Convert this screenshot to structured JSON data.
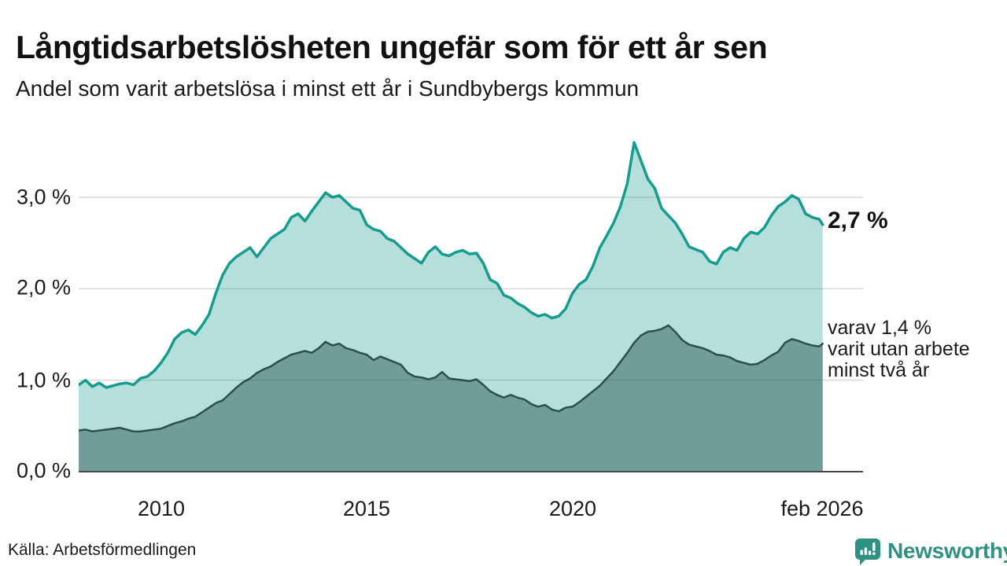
{
  "header": {
    "title": "Långtidsarbetslösheten ungefär som för ett år sen",
    "subtitle": "Andel som varit arbetslösa i minst ett år i Sundbybergs kommun"
  },
  "chart_data": {
    "type": "area",
    "title": "Långtidsarbetslösheten ungefär som för ett år sen",
    "subtitle": "Andel som varit arbetslösa i minst ett år i Sundbybergs kommun",
    "xlabel": "",
    "ylabel": "",
    "ylim": [
      0,
      3.75
    ],
    "xlim": [
      2008,
      2026.083
    ],
    "grid": true,
    "y_ticks": [
      "0,0 %",
      "1,0 %",
      "2,0 %",
      "3,0 %"
    ],
    "y_tick_values": [
      0,
      1,
      2,
      3
    ],
    "x_ticks": [
      "2010",
      "2015",
      "2020",
      "feb 2026"
    ],
    "x_tick_years": [
      2010,
      2015,
      2020,
      2026.083
    ],
    "x": [
      2008,
      2008.167,
      2008.333,
      2008.5,
      2008.667,
      2008.833,
      2009,
      2009.167,
      2009.333,
      2009.5,
      2009.667,
      2009.833,
      2010,
      2010.167,
      2010.333,
      2010.5,
      2010.667,
      2010.833,
      2011,
      2011.167,
      2011.333,
      2011.5,
      2011.667,
      2011.833,
      2012,
      2012.167,
      2012.333,
      2012.5,
      2012.667,
      2012.833,
      2013,
      2013.167,
      2013.333,
      2013.5,
      2013.667,
      2013.833,
      2014,
      2014.167,
      2014.333,
      2014.5,
      2014.667,
      2014.833,
      2015,
      2015.167,
      2015.333,
      2015.5,
      2015.667,
      2015.833,
      2016,
      2016.167,
      2016.333,
      2016.5,
      2016.667,
      2016.833,
      2017,
      2017.167,
      2017.333,
      2017.5,
      2017.667,
      2017.833,
      2018,
      2018.167,
      2018.333,
      2018.5,
      2018.667,
      2018.833,
      2019,
      2019.167,
      2019.333,
      2019.5,
      2019.667,
      2019.833,
      2020,
      2020.167,
      2020.333,
      2020.5,
      2020.667,
      2020.833,
      2021,
      2021.167,
      2021.333,
      2021.5,
      2021.667,
      2021.833,
      2022,
      2022.167,
      2022.333,
      2022.5,
      2022.667,
      2022.833,
      2023,
      2023.167,
      2023.333,
      2023.5,
      2023.667,
      2023.833,
      2024,
      2024.167,
      2024.333,
      2024.5,
      2024.667,
      2024.833,
      2025,
      2025.167,
      2025.333,
      2025.5,
      2025.667,
      2025.833,
      2026,
      2026.083
    ],
    "series": [
      {
        "name": "Arbetslösa minst ett år",
        "line_color": "#169c8e",
        "fill_color": "rgba(22,156,142,0.32)",
        "line_width": 3.5,
        "values": [
          0.95,
          1.0,
          0.93,
          0.97,
          0.92,
          0.94,
          0.96,
          0.97,
          0.95,
          1.02,
          1.04,
          1.1,
          1.19,
          1.3,
          1.45,
          1.52,
          1.55,
          1.5,
          1.6,
          1.72,
          1.95,
          2.15,
          2.28,
          2.35,
          2.4,
          2.45,
          2.35,
          2.45,
          2.55,
          2.6,
          2.65,
          2.78,
          2.82,
          2.74,
          2.85,
          2.95,
          3.05,
          3.0,
          3.02,
          2.95,
          2.88,
          2.86,
          2.7,
          2.65,
          2.63,
          2.55,
          2.52,
          2.45,
          2.38,
          2.33,
          2.28,
          2.4,
          2.46,
          2.38,
          2.36,
          2.4,
          2.42,
          2.38,
          2.39,
          2.28,
          2.1,
          2.06,
          1.93,
          1.9,
          1.84,
          1.8,
          1.74,
          1.7,
          1.72,
          1.68,
          1.7,
          1.78,
          1.95,
          2.05,
          2.1,
          2.25,
          2.45,
          2.58,
          2.72,
          2.9,
          3.15,
          3.6,
          3.4,
          3.2,
          3.1,
          2.88,
          2.8,
          2.72,
          2.6,
          2.46,
          2.43,
          2.4,
          2.3,
          2.27,
          2.4,
          2.45,
          2.42,
          2.55,
          2.62,
          2.6,
          2.67,
          2.8,
          2.9,
          2.95,
          3.02,
          2.98,
          2.82,
          2.78,
          2.76,
          2.7
        ]
      },
      {
        "name": "Arbetslösa minst två år",
        "line_color": "#2d4f49",
        "fill_color": "rgba(31,77,70,0.45)",
        "line_width": 2.5,
        "values": [
          0.45,
          0.46,
          0.44,
          0.45,
          0.46,
          0.47,
          0.48,
          0.46,
          0.44,
          0.44,
          0.45,
          0.46,
          0.47,
          0.5,
          0.53,
          0.55,
          0.58,
          0.6,
          0.65,
          0.7,
          0.75,
          0.78,
          0.85,
          0.92,
          0.98,
          1.02,
          1.08,
          1.12,
          1.15,
          1.2,
          1.24,
          1.28,
          1.3,
          1.32,
          1.3,
          1.35,
          1.42,
          1.38,
          1.4,
          1.35,
          1.33,
          1.3,
          1.28,
          1.22,
          1.26,
          1.23,
          1.2,
          1.17,
          1.08,
          1.04,
          1.03,
          1.01,
          1.03,
          1.09,
          1.02,
          1.01,
          1.0,
          0.99,
          1.01,
          0.95,
          0.88,
          0.84,
          0.81,
          0.84,
          0.81,
          0.79,
          0.74,
          0.71,
          0.73,
          0.68,
          0.66,
          0.7,
          0.71,
          0.76,
          0.82,
          0.88,
          0.94,
          1.02,
          1.1,
          1.2,
          1.3,
          1.41,
          1.49,
          1.53,
          1.54,
          1.56,
          1.6,
          1.53,
          1.44,
          1.39,
          1.37,
          1.35,
          1.32,
          1.28,
          1.27,
          1.25,
          1.21,
          1.19,
          1.17,
          1.18,
          1.22,
          1.27,
          1.31,
          1.41,
          1.45,
          1.43,
          1.4,
          1.38,
          1.37,
          1.4
        ]
      }
    ],
    "end_labels": {
      "primary": "2,7 %",
      "secondary": "varav 1,4 %\nvarit utan arbete\nminst två år"
    },
    "legend_position": "none",
    "gridline_color": "#d8d8d8",
    "baseline_color": "#4a4a4a"
  },
  "footer": {
    "source": "Källa: Arbetsförmedlingen",
    "logo_text": "Newsworthy",
    "logo_color": "#2e9181"
  }
}
